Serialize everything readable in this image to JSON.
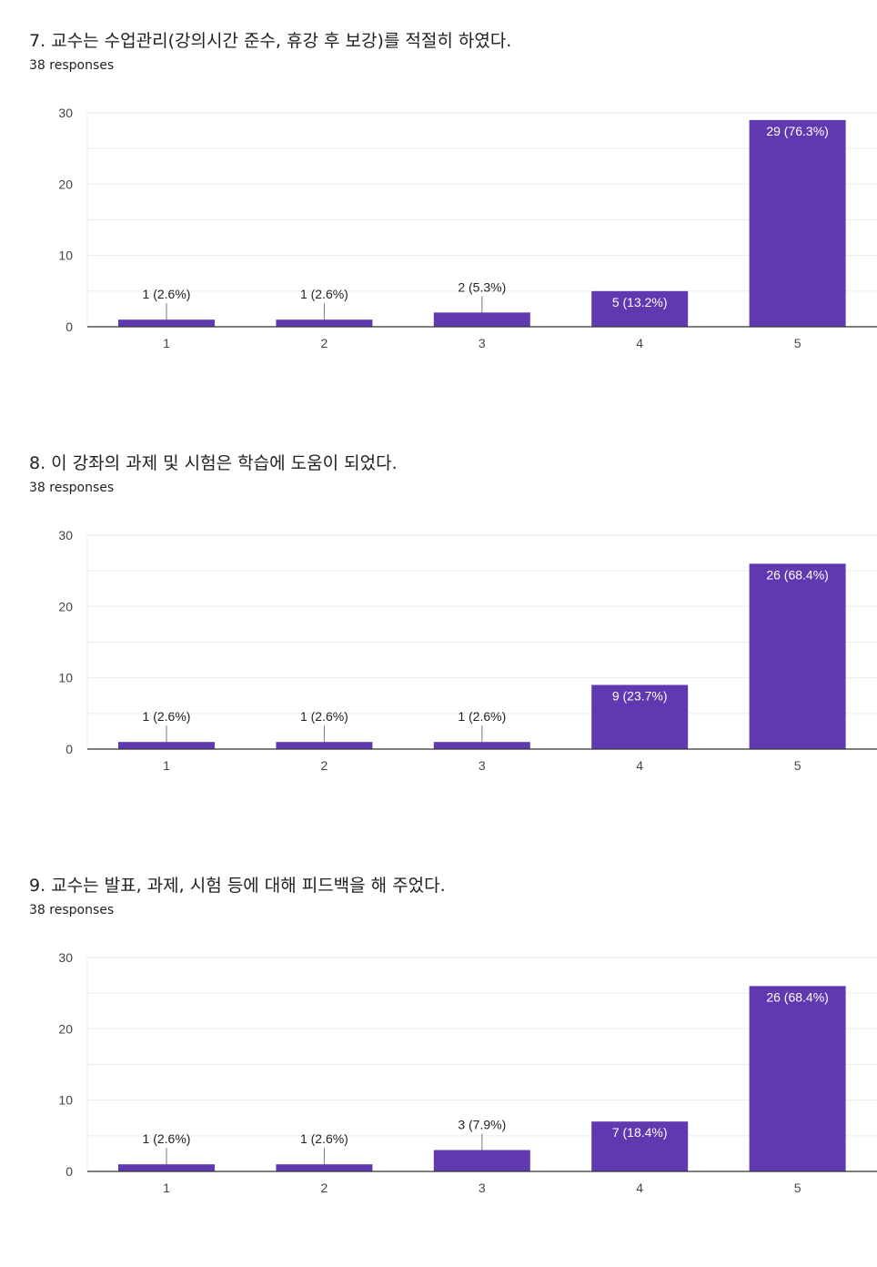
{
  "colors": {
    "bar": "#6039b0",
    "grid": "#ebebeb",
    "axis": "#333333",
    "label_dark": "#222222",
    "label_light": "#ffffff"
  },
  "sections": [
    {
      "title": "7. 교수는 수업관리(강의시간 준수, 휴강 후 보강)를 적절히 하였다.",
      "subtitle": "38 responses"
    },
    {
      "title": "8. 이 강좌의 과제 및 시험은 학습에 도움이 되었다.",
      "subtitle": "38 responses"
    },
    {
      "title": "9. 교수는 발표, 과제, 시험 등에 대해 피드백을 해 주었다.",
      "subtitle": "38 responses"
    }
  ],
  "chart_data": [
    {
      "type": "bar",
      "title": "7. 교수는 수업관리(강의시간 준수, 휴강 후 보강)를 적절히 하였다.",
      "categories": [
        "1",
        "2",
        "3",
        "4",
        "5"
      ],
      "values": [
        1,
        1,
        2,
        5,
        29
      ],
      "data_labels": [
        "1 (2.6%)",
        "1 (2.6%)",
        "2 (5.3%)",
        "5 (13.2%)",
        "29 (76.3%)"
      ],
      "yticks": [
        "0",
        "10",
        "20",
        "30"
      ],
      "ylim": [
        0,
        30
      ],
      "xlabel": "",
      "ylabel": ""
    },
    {
      "type": "bar",
      "title": "8. 이 강좌의 과제 및 시험은 학습에 도움이 되었다.",
      "categories": [
        "1",
        "2",
        "3",
        "4",
        "5"
      ],
      "values": [
        1,
        1,
        1,
        9,
        26
      ],
      "data_labels": [
        "1 (2.6%)",
        "1 (2.6%)",
        "1 (2.6%)",
        "9 (23.7%)",
        "26 (68.4%)"
      ],
      "yticks": [
        "0",
        "10",
        "20",
        "30"
      ],
      "ylim": [
        0,
        30
      ],
      "xlabel": "",
      "ylabel": ""
    },
    {
      "type": "bar",
      "title": "9. 교수는 발표, 과제, 시험 등에 대해 피드백을 해 주었다.",
      "categories": [
        "1",
        "2",
        "3",
        "4",
        "5"
      ],
      "values": [
        1,
        1,
        3,
        7,
        26
      ],
      "data_labels": [
        "1 (2.6%)",
        "1 (2.6%)",
        "3 (7.9%)",
        "7 (18.4%)",
        "26 (68.4%)"
      ],
      "yticks": [
        "0",
        "10",
        "20",
        "30"
      ],
      "ylim": [
        0,
        30
      ],
      "xlabel": "",
      "ylabel": ""
    }
  ]
}
